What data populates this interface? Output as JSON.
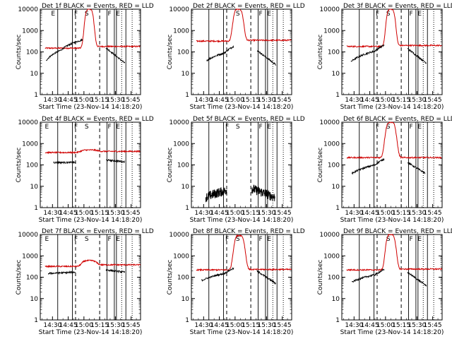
{
  "chart_data": [
    {
      "type": "line",
      "title": "Det 1f BLACK = Events, RED = LLD",
      "xlabel": "Start Time (23-Nov-14 14:18:20)",
      "ylabel": "Counts/sec",
      "yscale": "log",
      "ylim": [
        1,
        10000
      ],
      "yticks": [
        "1",
        "10",
        "100",
        "1000",
        "10000"
      ],
      "xticks": [
        "14:30",
        "14:45",
        "15:00",
        "15:15",
        "15:30",
        "15:45"
      ],
      "xlim": [
        "14:18:20",
        "15:54"
      ],
      "segments": [
        [
          "14:23",
          "14:39"
        ],
        [
          "14:49",
          "14:58"
        ],
        [
          "15:22",
          "15:38"
        ]
      ],
      "flags": [
        {
          "label": "E",
          "t": "14:28"
        },
        {
          "label": "F",
          "t": "14:50"
        },
        {
          "label": "S",
          "t": "15:00"
        },
        {
          "label": "F",
          "t": "15:22"
        },
        {
          "label": "E",
          "t": "15:30"
        }
      ],
      "events": {
        "start": "14:24",
        "rise_end": "14:38",
        "base": 40,
        "mid": 120,
        "rise_slope": 0.6,
        "gap": [
          "14:59",
          "15:21"
        ],
        "tail_end": "15:39",
        "tail_v": 30
      },
      "lld": {
        "start": "14:23",
        "end": "15:54",
        "base": 150,
        "peak": 10000,
        "peak_t": "15:05",
        "peak_w": 11,
        "tail": 180
      },
      "colors": {
        "events": "#000000",
        "lld": "#d00000"
      },
      "dash_lines": [
        "14:52",
        "15:15"
      ],
      "solid_lines": [
        "14:35",
        "14:49",
        "15:22",
        "15:29",
        "15:31",
        "15:40"
      ],
      "dotted_lines": [
        "15:36",
        "15:46"
      ]
    },
    {
      "type": "line",
      "title": "Det 2f BLACK = Events, RED = LLD",
      "xlabel": "Start Time (23-Nov-14 14:18:20)",
      "ylabel": "Counts/sec",
      "yscale": "log",
      "ylim": [
        1,
        10000
      ],
      "yticks": [
        "1",
        "10",
        "100",
        "1000",
        "10000"
      ],
      "xticks": [
        "14:30",
        "14:45",
        "15:00",
        "15:15",
        "15:30",
        "15:45"
      ],
      "xlim": [
        "14:18:20",
        "15:54"
      ],
      "flags": [
        {
          "label": "S",
          "t": "15:00"
        },
        {
          "label": "F",
          "t": "15:22"
        },
        {
          "label": "E",
          "t": "15:30"
        }
      ],
      "events": {
        "start": "14:33",
        "rise_end": "14:50",
        "base": 40,
        "mid": 90,
        "rise_slope": 0.7,
        "gap": [
          "14:59",
          "15:21"
        ],
        "tail_end": "15:39",
        "tail_v": 25
      },
      "lld": {
        "start": "14:23",
        "end": "15:54",
        "base": 320,
        "peak": 10000,
        "peak_t": "15:03",
        "peak_w": 12,
        "tail": 350
      },
      "colors": {
        "events": "#000000",
        "lld": "#d00000"
      },
      "dash_lines": [
        "14:52",
        "15:15"
      ],
      "solid_lines": [
        "14:35",
        "14:49",
        "15:22",
        "15:29",
        "15:31",
        "15:40"
      ],
      "dotted_lines": [
        "15:36",
        "15:46"
      ]
    },
    {
      "type": "line",
      "title": "Det 3f BLACK = Events, RED = LLD",
      "xlabel": "Start Time (23-Nov-14 14:18:20)",
      "ylabel": "Counts/sec",
      "yscale": "log",
      "ylim": [
        1,
        10000
      ],
      "yticks": [
        "1",
        "10",
        "100",
        "1000",
        "10000"
      ],
      "xticks": [
        "14:30",
        "14:45",
        "15:00",
        "15:15",
        "15:30",
        "15:45"
      ],
      "xlim": [
        "14:18:20",
        "15:54"
      ],
      "flags": [
        {
          "label": "F",
          "t": "14:50"
        },
        {
          "label": "S",
          "t": "15:00"
        },
        {
          "label": "F",
          "t": "15:22"
        },
        {
          "label": "E",
          "t": "15:30"
        }
      ],
      "events": {
        "start": "14:27",
        "rise_end": "14:50",
        "base": 35,
        "mid": 110,
        "rise_slope": 0.6,
        "gap": [
          "14:59",
          "15:21"
        ],
        "tail_end": "15:39",
        "tail_v": 30
      },
      "lld": {
        "start": "14:23",
        "end": "15:54",
        "base": 180,
        "peak": 10000,
        "peak_t": "15:05",
        "peak_w": 11,
        "tail": 200
      },
      "colors": {
        "events": "#000000",
        "lld": "#d00000"
      },
      "dash_lines": [
        "14:52",
        "15:15"
      ],
      "solid_lines": [
        "14:35",
        "14:49",
        "15:22",
        "15:29",
        "15:31",
        "15:40"
      ],
      "dotted_lines": [
        "15:36",
        "15:46"
      ]
    },
    {
      "type": "line",
      "title": "Det 4f BLACK = Events, RED = LLD",
      "xlabel": "Start Time (23-Nov-14 14:18:20)",
      "ylabel": "Counts/sec",
      "yscale": "log",
      "ylim": [
        1,
        10000
      ],
      "yticks": [
        "1",
        "10",
        "100",
        "1000",
        "10000"
      ],
      "xticks": [
        "14:30",
        "14:45",
        "15:00",
        "15:15",
        "15:30",
        "15:45"
      ],
      "xlim": [
        "14:18:20",
        "15:54"
      ],
      "flags": [
        {
          "label": "E",
          "t": "14:22"
        },
        {
          "label": "F",
          "t": "14:50"
        },
        {
          "label": "S",
          "t": "15:00"
        },
        {
          "label": "F",
          "t": "15:22"
        },
        {
          "label": "E",
          "t": "15:30"
        }
      ],
      "events": {
        "start": "14:31",
        "rise_end": "14:50",
        "base": 130,
        "mid": 130,
        "rise_slope": 0,
        "gap": [
          "14:52",
          "15:21"
        ],
        "tail_end": "15:39",
        "tail_v": 140
      },
      "lld": {
        "start": "14:23",
        "end": "15:54",
        "base": 380,
        "peak": 500,
        "peak_t": "15:05",
        "peak_w": 18,
        "tail": 430
      },
      "colors": {
        "events": "#000000",
        "lld": "#d00000"
      },
      "dash_lines": [
        "14:52",
        "15:15"
      ],
      "solid_lines": [
        "14:35",
        "14:49",
        "15:22",
        "15:29",
        "15:31",
        "15:40"
      ],
      "dotted_lines": [
        "15:36",
        "15:46"
      ]
    },
    {
      "type": "line",
      "title": "Det 5f BLACK = Events, RED = LLD",
      "xlabel": "Start Time (23-Nov-14 14:18:20)",
      "ylabel": "Counts/sec",
      "yscale": "log",
      "ylim": [
        1,
        10000
      ],
      "yticks": [
        "1",
        "10",
        "100",
        "1000",
        "10000"
      ],
      "xticks": [
        "14:30",
        "14:45",
        "15:00",
        "15:15",
        "15:30",
        "15:45"
      ],
      "xlim": [
        "14:18:20",
        "15:54"
      ],
      "flags": [
        {
          "label": "F",
          "t": "14:50"
        },
        {
          "label": "S",
          "t": "15:00"
        },
        {
          "label": "F",
          "t": "15:22"
        },
        {
          "label": "E",
          "t": "15:30"
        }
      ],
      "events": {
        "start": "14:32",
        "rise_end": "14:50",
        "base": 3,
        "mid": 6,
        "rise_slope": 0.4,
        "noisy": true,
        "gap": [
          "14:52",
          "15:16"
        ],
        "tail_end": "15:38",
        "tail_v": 3
      },
      "lld": null,
      "colors": {
        "events": "#000000",
        "lld": "#d00000"
      },
      "dash_lines": [
        "14:52",
        "15:15"
      ],
      "solid_lines": [
        "14:35",
        "14:49",
        "15:22",
        "15:29",
        "15:31",
        "15:40"
      ],
      "dotted_lines": [
        "15:36",
        "15:46"
      ]
    },
    {
      "type": "line",
      "title": "Det 6f BLACK = Events, RED = LLD",
      "xlabel": "Start Time (23-Nov-14 14:18:20)",
      "ylabel": "Counts/sec",
      "yscale": "log",
      "ylim": [
        1,
        10000
      ],
      "yticks": [
        "1",
        "10",
        "100",
        "1000",
        "10000"
      ],
      "xticks": [
        "14:30",
        "14:45",
        "15:00",
        "15:15",
        "15:30",
        "15:45"
      ],
      "xlim": [
        "14:18:20",
        "15:54"
      ],
      "flags": [
        {
          "label": "F",
          "t": "14:50"
        },
        {
          "label": "S",
          "t": "15:00"
        },
        {
          "label": "F",
          "t": "15:22"
        },
        {
          "label": "E",
          "t": "15:30"
        }
      ],
      "events": {
        "start": "14:28",
        "rise_end": "14:50",
        "base": 40,
        "mid": 100,
        "rise_slope": 0.6,
        "gap": [
          "14:59",
          "15:21"
        ],
        "tail_end": "15:38",
        "tail_v": 40
      },
      "lld": {
        "start": "14:23",
        "end": "15:54",
        "base": 220,
        "peak": 10000,
        "peak_t": "15:05",
        "peak_w": 13,
        "tail": 220
      },
      "colors": {
        "events": "#000000",
        "lld": "#d00000"
      },
      "dash_lines": [
        "14:52",
        "15:15"
      ],
      "solid_lines": [
        "14:35",
        "14:49",
        "15:22",
        "15:29",
        "15:31",
        "15:40"
      ],
      "dotted_lines": [
        "15:36",
        "15:46"
      ]
    },
    {
      "type": "line",
      "title": "Det 7f BLACK = Events, RED = LLD",
      "xlabel": "Start Time (23-Nov-14 14:18:20)",
      "ylabel": "Counts/sec",
      "yscale": "log",
      "ylim": [
        1,
        10000
      ],
      "yticks": [
        "1",
        "10",
        "100",
        "1000",
        "10000"
      ],
      "xticks": [
        "14:30",
        "14:45",
        "15:00",
        "15:15",
        "15:30",
        "15:45"
      ],
      "xlim": [
        "14:18:20",
        "15:54"
      ],
      "flags": [
        {
          "label": "E",
          "t": "14:22"
        },
        {
          "label": "F",
          "t": "14:50"
        },
        {
          "label": "S",
          "t": "15:00"
        },
        {
          "label": "F",
          "t": "15:22"
        },
        {
          "label": "E",
          "t": "15:30"
        }
      ],
      "events": {
        "start": "14:26",
        "rise_end": "14:50",
        "base": 150,
        "mid": 170,
        "rise_slope": 0.1,
        "gap": [
          "14:52",
          "15:21"
        ],
        "tail_end": "15:39",
        "tail_v": 170
      },
      "lld": {
        "start": "14:23",
        "end": "15:54",
        "base": 320,
        "peak": 600,
        "peak_t": "15:05",
        "peak_w": 16,
        "tail": 380
      },
      "colors": {
        "events": "#000000",
        "lld": "#d00000"
      },
      "dash_lines": [
        "14:52",
        "15:15"
      ],
      "solid_lines": [
        "14:35",
        "14:49",
        "15:22",
        "15:29",
        "15:31",
        "15:40"
      ],
      "dotted_lines": [
        "15:36",
        "15:46"
      ]
    },
    {
      "type": "line",
      "title": "Det 8f BLACK = Events, RED = LLD",
      "xlabel": "Start Time (23-Nov-14 14:18:20)",
      "ylabel": "Counts/sec",
      "yscale": "log",
      "ylim": [
        1,
        10000
      ],
      "yticks": [
        "1",
        "10",
        "100",
        "1000",
        "10000"
      ],
      "xticks": [
        "14:30",
        "14:45",
        "15:00",
        "15:15",
        "15:30",
        "15:45"
      ],
      "xlim": [
        "14:18:20",
        "15:54"
      ],
      "flags": [
        {
          "label": "F",
          "t": "14:50"
        },
        {
          "label": "S",
          "t": "15:00"
        },
        {
          "label": "F",
          "t": "15:22"
        },
        {
          "label": "E",
          "t": "15:30"
        }
      ],
      "events": {
        "start": "14:28",
        "rise_end": "14:50",
        "base": 70,
        "mid": 150,
        "rise_slope": 0.5,
        "gap": [
          "14:59",
          "15:21"
        ],
        "tail_end": "15:39",
        "tail_v": 50
      },
      "lld": {
        "start": "14:23",
        "end": "15:54",
        "base": 220,
        "peak": 9000,
        "peak_t": "15:04",
        "peak_w": 13,
        "tail": 230
      },
      "colors": {
        "events": "#000000",
        "lld": "#d00000"
      },
      "dash_lines": [
        "14:52",
        "15:15"
      ],
      "solid_lines": [
        "14:35",
        "14:49",
        "15:22",
        "15:29",
        "15:31",
        "15:40"
      ],
      "dotted_lines": [
        "15:36",
        "15:46"
      ]
    },
    {
      "type": "line",
      "title": "Det 9f BLACK = Events, RED = LLD",
      "xlabel": "Start Time (23-Nov-14 14:18:20)",
      "ylabel": "Counts/sec",
      "yscale": "log",
      "ylim": [
        1,
        10000
      ],
      "yticks": [
        "1",
        "10",
        "100",
        "1000",
        "10000"
      ],
      "xticks": [
        "14:30",
        "14:45",
        "15:00",
        "15:15",
        "15:30",
        "15:45"
      ],
      "xlim": [
        "14:18:20",
        "15:54"
      ],
      "flags": [
        {
          "label": "S",
          "t": "15:00"
        },
        {
          "label": "F",
          "t": "15:22"
        },
        {
          "label": "E",
          "t": "15:30"
        }
      ],
      "events": {
        "start": "14:28",
        "rise_end": "14:50",
        "base": 60,
        "mid": 130,
        "rise_slope": 0.5,
        "gap": [
          "14:59",
          "15:21"
        ],
        "tail_end": "15:39",
        "tail_v": 40
      },
      "lld": {
        "start": "14:23",
        "end": "15:54",
        "base": 220,
        "peak": 10000,
        "peak_t": "15:05",
        "peak_w": 12,
        "tail": 240
      },
      "colors": {
        "events": "#000000",
        "lld": "#d00000"
      },
      "dash_lines": [
        "14:52",
        "15:15"
      ],
      "solid_lines": [
        "14:35",
        "14:49",
        "15:22",
        "15:29",
        "15:31",
        "15:40"
      ],
      "dotted_lines": [
        "15:36",
        "15:46"
      ]
    }
  ]
}
